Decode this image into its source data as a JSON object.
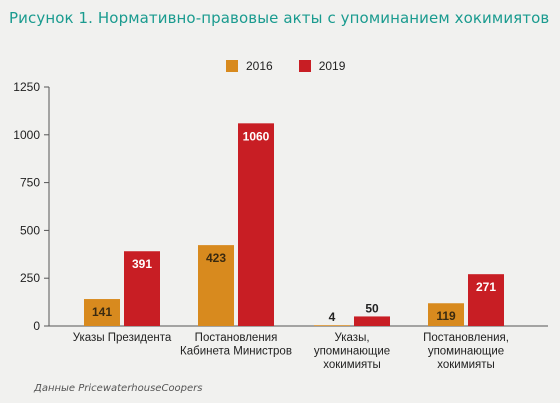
{
  "title": "Рисунок 1. Нормативно-правовые акты с упоминанием хокимиятов",
  "source": "Данные PricewaterhouseCoopers",
  "colors": {
    "y2016": "#d88a1e",
    "y2019": "#c81e24",
    "title": "#1a9b8f",
    "background": "#f1f1ef"
  },
  "chart_data": {
    "type": "bar",
    "categories": [
      [
        "Указы Президента"
      ],
      [
        "Постановления",
        "Кабинета Министров"
      ],
      [
        "Указы,",
        "упоминающие",
        "хокимияты"
      ],
      [
        "Постановления,",
        "упоминающие",
        "хокимияты"
      ]
    ],
    "series": [
      {
        "name": "2016",
        "values": [
          141,
          423,
          4,
          119
        ]
      },
      {
        "name": "2019",
        "values": [
          391,
          1060,
          50,
          271
        ]
      }
    ],
    "yticks": [
      "0",
      "250",
      "500",
      "750",
      "1000",
      "1250"
    ],
    "ylim": [
      0,
      1250
    ],
    "grid": false,
    "legend": "top-center",
    "data_labels": true
  }
}
